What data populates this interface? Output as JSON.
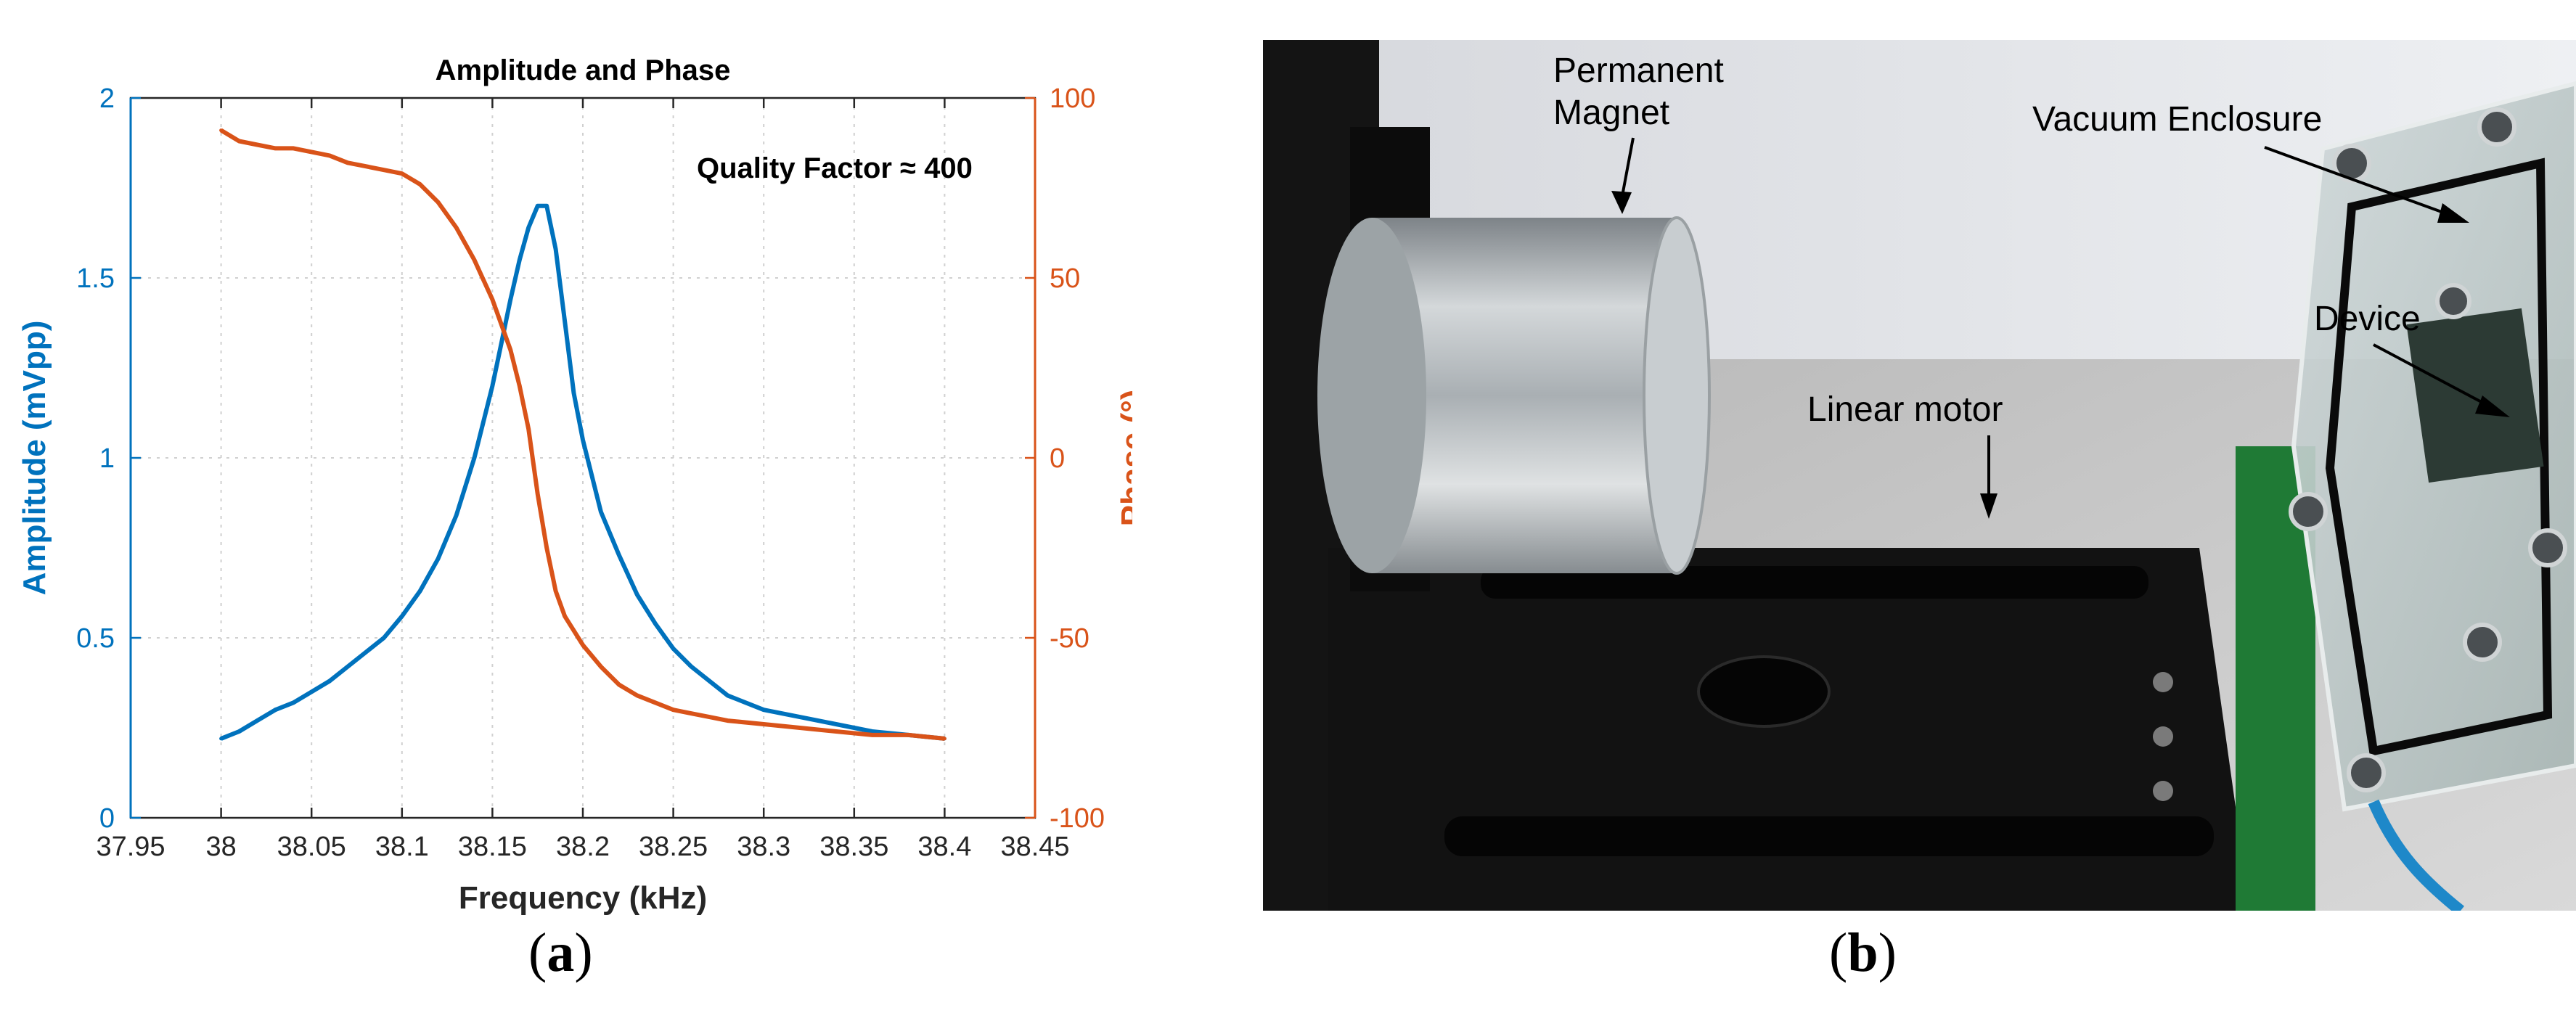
{
  "chart_data": {
    "type": "line",
    "title": "Amplitude and Phase",
    "annotation": "Quality Factor ≈ 400",
    "xlabel": "Frequency (kHz)",
    "ylabel_left": "Amplitude (mVpp)",
    "ylabel_right": "Phase (°)",
    "xlim": [
      37.95,
      38.45
    ],
    "ylim_left": [
      0,
      2
    ],
    "ylim_right": [
      -100,
      100
    ],
    "x_ticks": [
      "37.95",
      "38",
      "38.05",
      "38.1",
      "38.15",
      "38.2",
      "38.25",
      "38.3",
      "38.35",
      "38.4",
      "38.45"
    ],
    "y_left_ticks": [
      "0",
      "0.5",
      "1",
      "1.5",
      "2"
    ],
    "y_right_ticks": [
      "-100",
      "-50",
      "0",
      "50",
      "100"
    ],
    "grid": true,
    "series": [
      {
        "axis": "left",
        "color": "#0072BD",
        "x": [
          38.0,
          38.01,
          38.02,
          38.03,
          38.04,
          38.05,
          38.06,
          38.07,
          38.08,
          38.09,
          38.1,
          38.11,
          38.12,
          38.13,
          38.14,
          38.15,
          38.155,
          38.16,
          38.165,
          38.17,
          38.175,
          38.18,
          38.185,
          38.19,
          38.195,
          38.2,
          38.21,
          38.22,
          38.23,
          38.24,
          38.25,
          38.26,
          38.27,
          38.28,
          38.29,
          38.3,
          38.32,
          38.34,
          38.36,
          38.38,
          38.4
        ],
        "values": [
          0.22,
          0.24,
          0.27,
          0.3,
          0.32,
          0.35,
          0.38,
          0.42,
          0.46,
          0.5,
          0.56,
          0.63,
          0.72,
          0.84,
          1.0,
          1.2,
          1.32,
          1.44,
          1.55,
          1.64,
          1.7,
          1.7,
          1.58,
          1.38,
          1.18,
          1.05,
          0.85,
          0.73,
          0.62,
          0.54,
          0.47,
          0.42,
          0.38,
          0.34,
          0.32,
          0.3,
          0.28,
          0.26,
          0.24,
          0.23,
          0.22
        ]
      },
      {
        "axis": "right",
        "color": "#D95319",
        "x": [
          38.0,
          38.01,
          38.02,
          38.03,
          38.04,
          38.05,
          38.06,
          38.07,
          38.08,
          38.09,
          38.1,
          38.11,
          38.12,
          38.13,
          38.14,
          38.15,
          38.16,
          38.165,
          38.17,
          38.175,
          38.18,
          38.185,
          38.19,
          38.2,
          38.21,
          38.22,
          38.23,
          38.24,
          38.25,
          38.26,
          38.27,
          38.28,
          38.3,
          38.32,
          38.34,
          38.36,
          38.38,
          38.4
        ],
        "values": [
          91,
          88,
          87,
          86,
          86,
          85,
          84,
          82,
          81,
          80,
          79,
          76,
          71,
          64,
          55,
          44,
          30,
          20,
          8,
          -10,
          -25,
          -37,
          -44,
          -52,
          -58,
          -63,
          -66,
          -68,
          -70,
          -71,
          -72,
          -73,
          -74,
          -75,
          -76,
          -77,
          -77,
          -78
        ]
      }
    ]
  },
  "photo": {
    "labels": {
      "magnet": "Permanent\nMagnet",
      "enclosure": "Vacuum Enclosure",
      "device": "Device",
      "motor": "Linear motor"
    }
  },
  "captions": {
    "a": "a",
    "b": "b"
  }
}
